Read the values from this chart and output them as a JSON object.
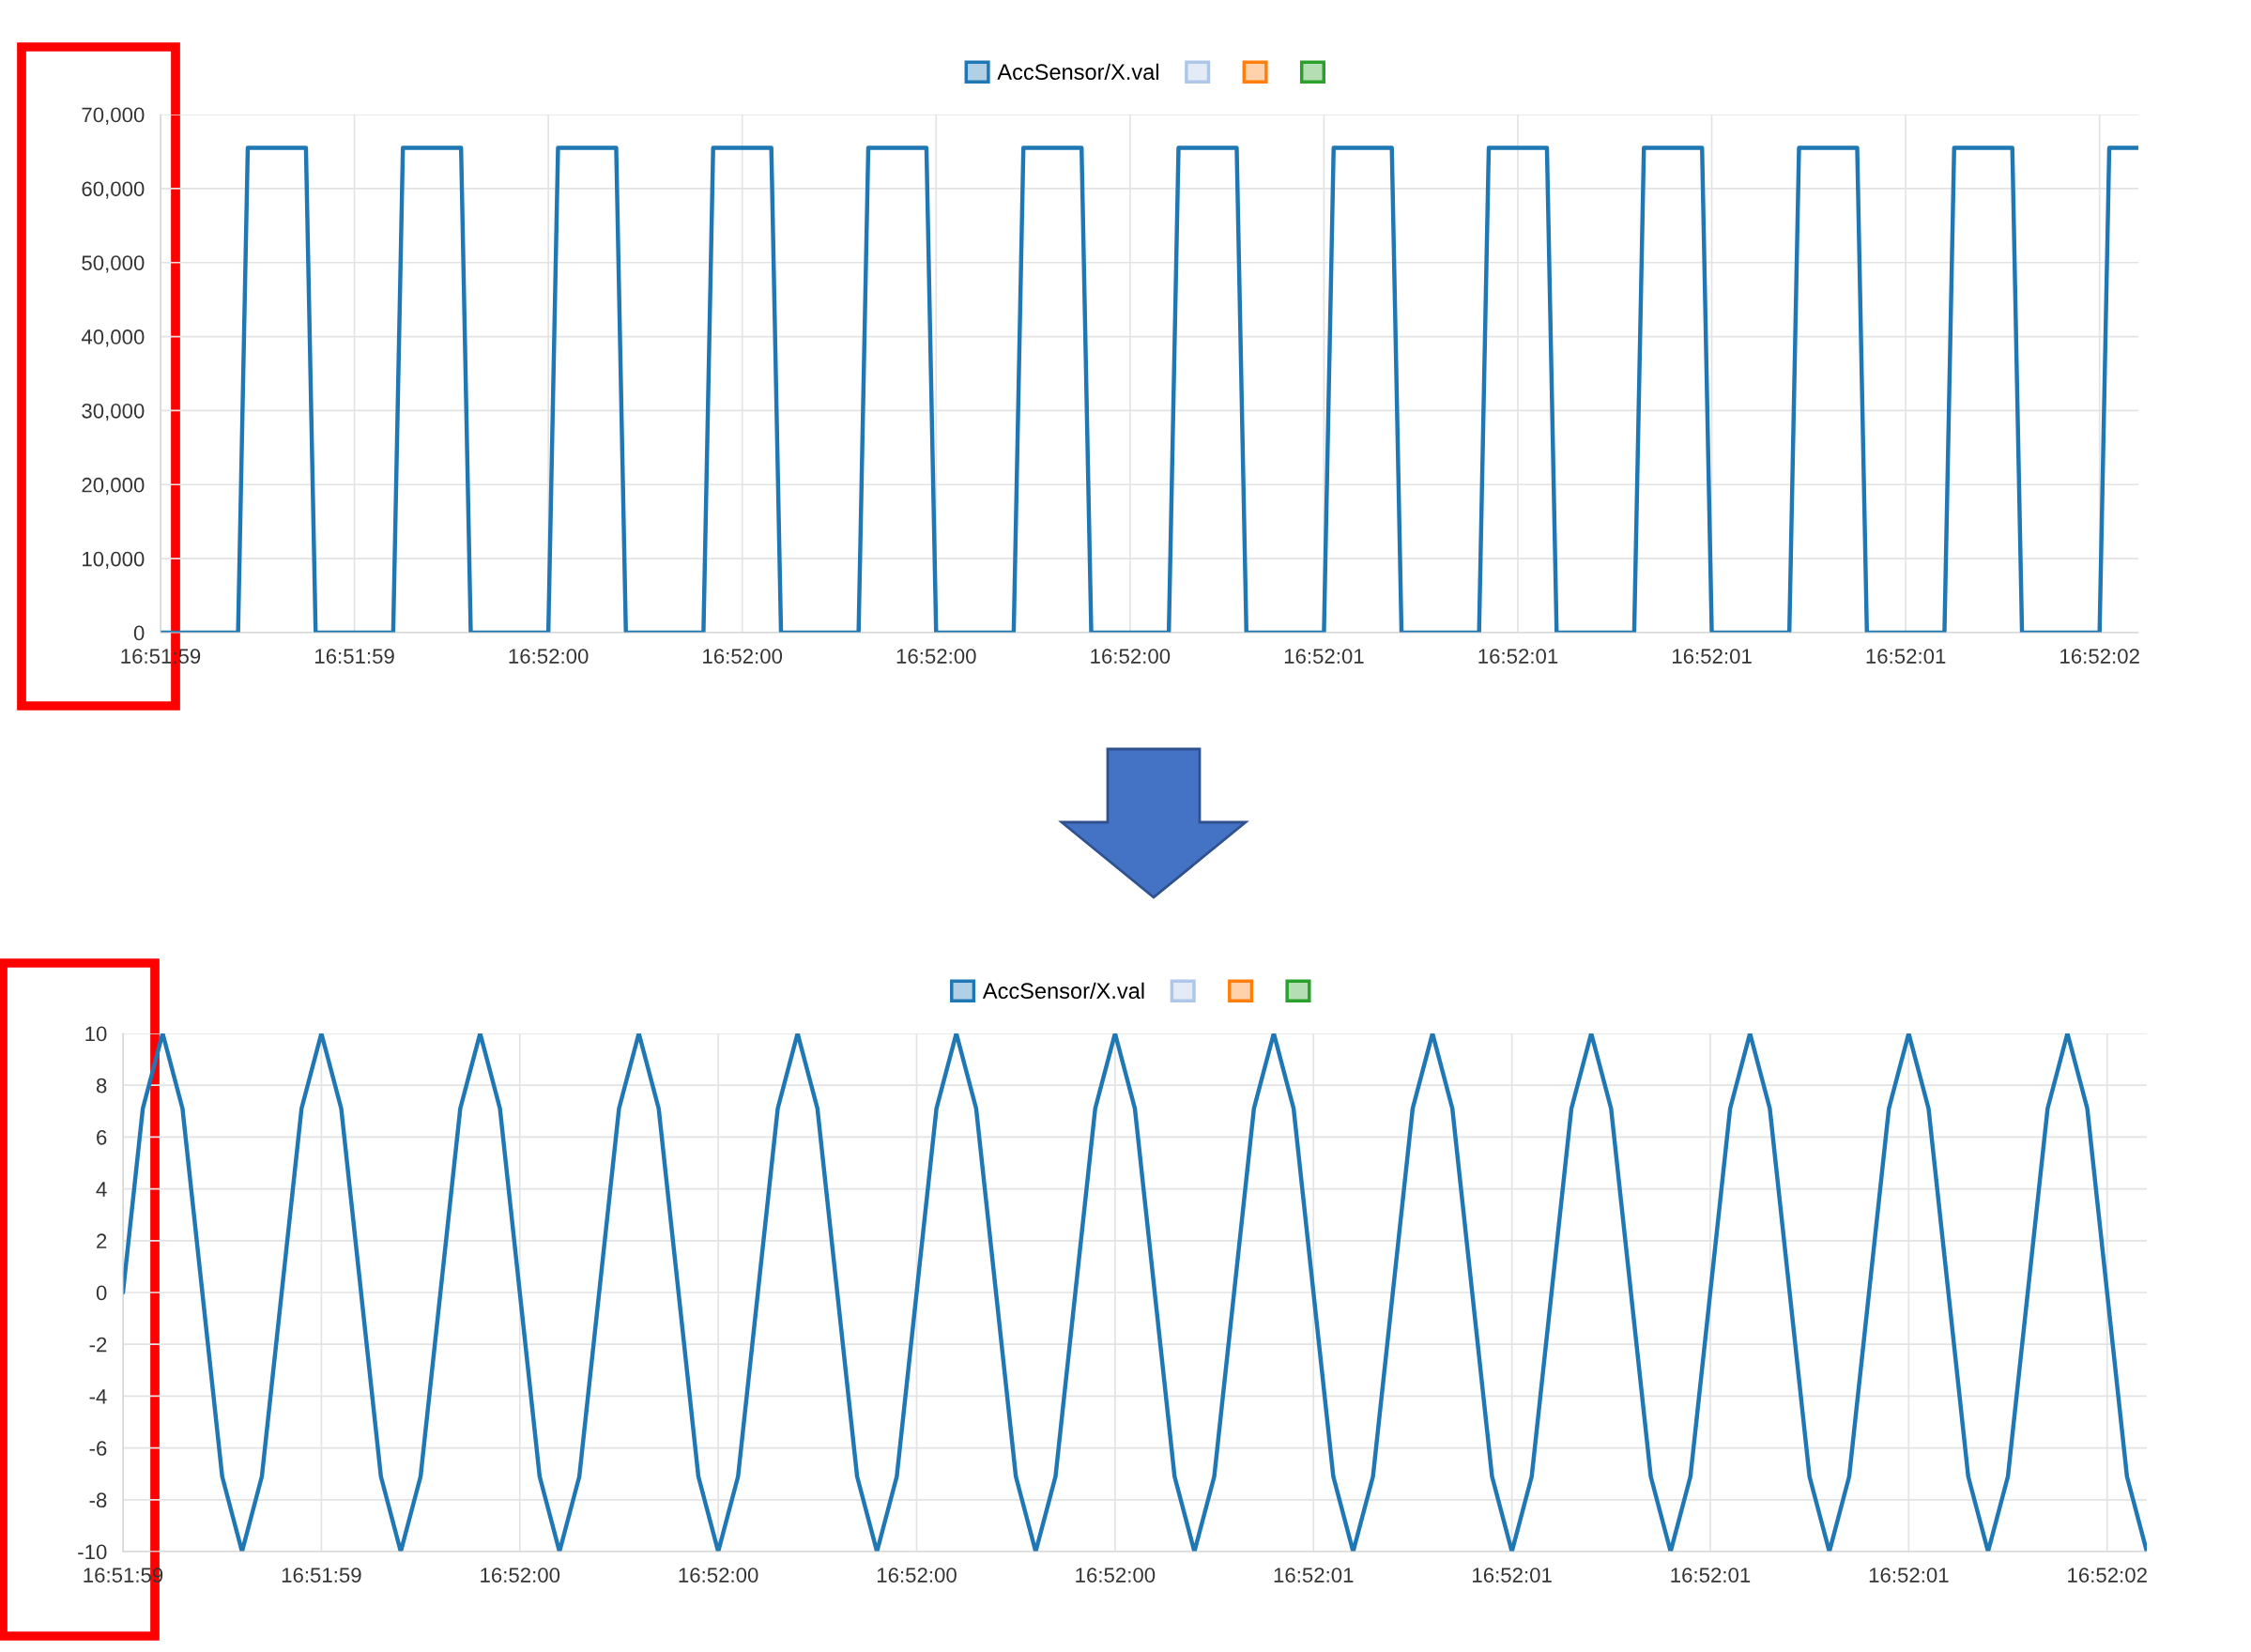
{
  "chart_data": [
    {
      "type": "line",
      "legend": "top",
      "grid": true,
      "categories": [
        "16:51:59",
        null,
        null,
        null,
        null,
        null,
        null,
        null,
        null,
        null,
        null,
        null,
        null,
        null,
        null,
        null,
        null,
        null,
        null,
        null,
        "16:51:59",
        null,
        null,
        null,
        null,
        null,
        null,
        null,
        null,
        null,
        null,
        null,
        null,
        null,
        null,
        null,
        null,
        null,
        null,
        null,
        "16:52:00",
        null,
        null,
        null,
        null,
        null,
        null,
        null,
        null,
        null,
        null,
        null,
        null,
        null,
        null,
        null,
        null,
        null,
        null,
        null,
        "16:52:00",
        null,
        null,
        null,
        null,
        null,
        null,
        null,
        null,
        null,
        null,
        null,
        null,
        null,
        null,
        null,
        null,
        null,
        null,
        null,
        "16:52:00",
        null,
        null,
        null,
        null,
        null,
        null,
        null,
        null,
        null,
        null,
        null,
        null,
        null,
        null,
        null,
        null,
        null,
        null,
        null,
        "16:52:00",
        null,
        null,
        null,
        null,
        null,
        null,
        null,
        null,
        null,
        null,
        null,
        null,
        null,
        null,
        null,
        null,
        null,
        null,
        null,
        "16:52:01",
        null,
        null,
        null,
        null,
        null,
        null,
        null,
        null,
        null,
        null,
        null,
        null,
        null,
        null,
        null,
        null,
        null,
        null,
        null,
        "16:52:01",
        null,
        null,
        null,
        null,
        null,
        null,
        null,
        null,
        null,
        null,
        null,
        null,
        null,
        null,
        null,
        null,
        null,
        null,
        null,
        "16:52:01",
        null,
        null,
        null,
        null,
        null,
        null,
        null,
        null,
        null,
        null,
        null,
        null,
        null,
        null,
        null,
        null,
        null,
        null,
        null,
        "16:52:01",
        null,
        null,
        null,
        null,
        null,
        null,
        null,
        null,
        null,
        null,
        null,
        null,
        null,
        null,
        null,
        null,
        null,
        null,
        null,
        "16:52:02",
        null,
        null,
        null,
        null
      ],
      "ylim": [
        0,
        70000
      ],
      "yticks": [
        {
          "value": 0,
          "label": "0"
        },
        {
          "value": 10000,
          "label": "10,000"
        },
        {
          "value": 20000,
          "label": "20,000"
        },
        {
          "value": 30000,
          "label": "30,000"
        },
        {
          "value": 40000,
          "label": "40,000"
        },
        {
          "value": 50000,
          "label": "50,000"
        },
        {
          "value": 60000,
          "label": "60,000"
        },
        {
          "value": 70000,
          "label": "70,000"
        }
      ],
      "series": [
        {
          "name": "AccSensor/X.val",
          "color": "#1f77b4",
          "values": [
            0,
            0,
            0,
            0,
            0,
            0,
            0,
            0,
            0,
            65500,
            65500,
            65500,
            65500,
            65500,
            65500,
            65500,
            0,
            0,
            0,
            0,
            0,
            0,
            0,
            0,
            0,
            65500,
            65500,
            65500,
            65500,
            65500,
            65500,
            65500,
            0,
            0,
            0,
            0,
            0,
            0,
            0,
            0,
            0,
            65500,
            65500,
            65500,
            65500,
            65500,
            65500,
            65500,
            0,
            0,
            0,
            0,
            0,
            0,
            0,
            0,
            0,
            65500,
            65500,
            65500,
            65500,
            65500,
            65500,
            65500,
            0,
            0,
            0,
            0,
            0,
            0,
            0,
            0,
            0,
            65500,
            65500,
            65500,
            65500,
            65500,
            65500,
            65500,
            0,
            0,
            0,
            0,
            0,
            0,
            0,
            0,
            0,
            65500,
            65500,
            65500,
            65500,
            65500,
            65500,
            65500,
            0,
            0,
            0,
            0,
            0,
            0,
            0,
            0,
            0,
            65500,
            65500,
            65500,
            65500,
            65500,
            65500,
            65500,
            0,
            0,
            0,
            0,
            0,
            0,
            0,
            0,
            0,
            65500,
            65500,
            65500,
            65500,
            65500,
            65500,
            65500,
            0,
            0,
            0,
            0,
            0,
            0,
            0,
            0,
            0,
            65500,
            65500,
            65500,
            65500,
            65500,
            65500,
            65500,
            0,
            0,
            0,
            0,
            0,
            0,
            0,
            0,
            0,
            65500,
            65500,
            65500,
            65500,
            65500,
            65500,
            65500,
            0,
            0,
            0,
            0,
            0,
            0,
            0,
            0,
            0,
            65500,
            65500,
            65500,
            65500,
            65500,
            65500,
            65500,
            0,
            0,
            0,
            0,
            0,
            0,
            0,
            0,
            0,
            65500,
            65500,
            65500,
            65500,
            65500,
            65500,
            65500,
            0,
            0,
            0,
            0,
            0,
            0,
            0,
            0,
            0,
            65500,
            65500,
            65500,
            65500
          ]
        }
      ]
    },
    {
      "type": "line",
      "legend": "top",
      "grid": true,
      "categories": [
        "16:51:59",
        null,
        null,
        null,
        null,
        null,
        null,
        null,
        null,
        null,
        "16:51:59",
        null,
        null,
        null,
        null,
        null,
        null,
        null,
        null,
        null,
        "16:52:00",
        null,
        null,
        null,
        null,
        null,
        null,
        null,
        null,
        null,
        "16:52:00",
        null,
        null,
        null,
        null,
        null,
        null,
        null,
        null,
        null,
        "16:52:00",
        null,
        null,
        null,
        null,
        null,
        null,
        null,
        null,
        null,
        "16:52:00",
        null,
        null,
        null,
        null,
        null,
        null,
        null,
        null,
        null,
        "16:52:01",
        null,
        null,
        null,
        null,
        null,
        null,
        null,
        null,
        null,
        "16:52:01",
        null,
        null,
        null,
        null,
        null,
        null,
        null,
        null,
        null,
        "16:52:01",
        null,
        null,
        null,
        null,
        null,
        null,
        null,
        null,
        null,
        "16:52:01",
        null,
        null,
        null,
        null,
        null,
        null,
        null,
        null,
        null,
        "16:52:02",
        null,
        null
      ],
      "ylim": [
        -10,
        10
      ],
      "yticks": [
        -10,
        -8,
        -6,
        -4,
        -2,
        0,
        2,
        4,
        6,
        8,
        10
      ],
      "series": [
        {
          "name": "AccSensor/X.val",
          "color": "#1f77b4",
          "values": [
            0,
            7.1,
            10,
            7.1,
            0,
            -7.1,
            -10,
            -7.1,
            0,
            7.1,
            10,
            7.1,
            0,
            -7.1,
            -10,
            -7.1,
            0,
            7.1,
            10,
            7.1,
            0,
            -7.1,
            -10,
            -7.1,
            0,
            7.1,
            10,
            7.1,
            0,
            -7.1,
            -10,
            -7.1,
            0,
            7.1,
            10,
            7.1,
            0,
            -7.1,
            -10,
            -7.1,
            0,
            7.1,
            10,
            7.1,
            0,
            -7.1,
            -10,
            -7.1,
            0,
            7.1,
            10,
            7.1,
            0,
            -7.1,
            -10,
            -7.1,
            0,
            7.1,
            10,
            7.1,
            0,
            -7.1,
            -10,
            -7.1,
            0,
            7.1,
            10,
            7.1,
            0,
            -7.1,
            -10,
            -7.1,
            0,
            7.1,
            10,
            7.1,
            0,
            -7.1,
            -10,
            -7.1,
            0,
            7.1,
            10,
            7.1,
            0,
            -7.1,
            -10,
            -7.1,
            0,
            7.1,
            10,
            7.1,
            0,
            -7.1,
            -10,
            -7.1,
            0,
            7.1,
            10,
            7.1,
            0,
            -7.1,
            -10
          ]
        }
      ]
    }
  ]
}
